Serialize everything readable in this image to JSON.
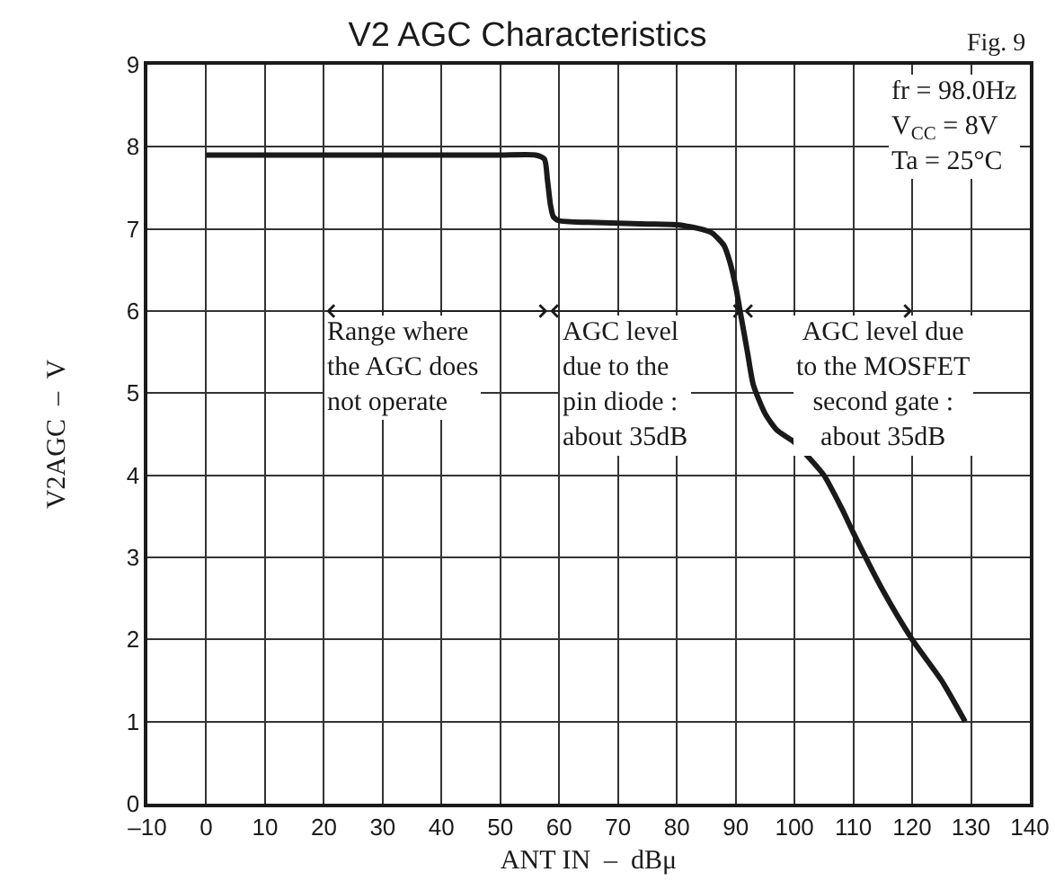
{
  "chart_data": {
    "type": "line",
    "title": "V2 AGC Characteristics",
    "xlabel": "ANT IN  –  dBμ",
    "ylabel": "V2AGC  –  V",
    "x": [
      0,
      10,
      20,
      30,
      40,
      50,
      56,
      57.5,
      58,
      58.5,
      59,
      60,
      65,
      70,
      75,
      80,
      84,
      86,
      88,
      89,
      90,
      91,
      92,
      93,
      95,
      97,
      100,
      102,
      105,
      108,
      110,
      115,
      120,
      125,
      129
    ],
    "series": [
      {
        "color": "#1a1a1a",
        "values": [
          7.9,
          7.9,
          7.9,
          7.9,
          7.9,
          7.9,
          7.9,
          7.85,
          7.6,
          7.3,
          7.15,
          7.1,
          7.08,
          7.07,
          7.06,
          7.05,
          7.0,
          6.95,
          6.8,
          6.6,
          6.3,
          5.9,
          5.5,
          5.1,
          4.75,
          4.55,
          4.4,
          4.25,
          4.0,
          3.6,
          3.3,
          2.6,
          2.0,
          1.5,
          1.0
        ]
      }
    ],
    "xlim": [
      -10,
      140
    ],
    "ylim": [
      0,
      9
    ],
    "xticks": [
      {
        "value": -10,
        "label": "–10"
      },
      0,
      10,
      20,
      30,
      40,
      50,
      60,
      70,
      80,
      90,
      100,
      110,
      120,
      130,
      140
    ],
    "yticks": [
      0,
      1,
      2,
      3,
      4,
      5,
      6,
      7,
      8,
      9
    ],
    "grid": true,
    "marker": "none",
    "line_style": "solid",
    "annotations": [
      "Range where\nthe AGC does\nnot operate",
      "AGC level\ndue to the\npin diode :\nabout 35dB",
      "AGC level due\nto the MOSFET\nsecond gate :\nabout 35dB",
      "fr = 98.0Hz\nV$_{CC}$ = 8V\nTa = 25°C",
      "Fig. 9"
    ]
  }
}
